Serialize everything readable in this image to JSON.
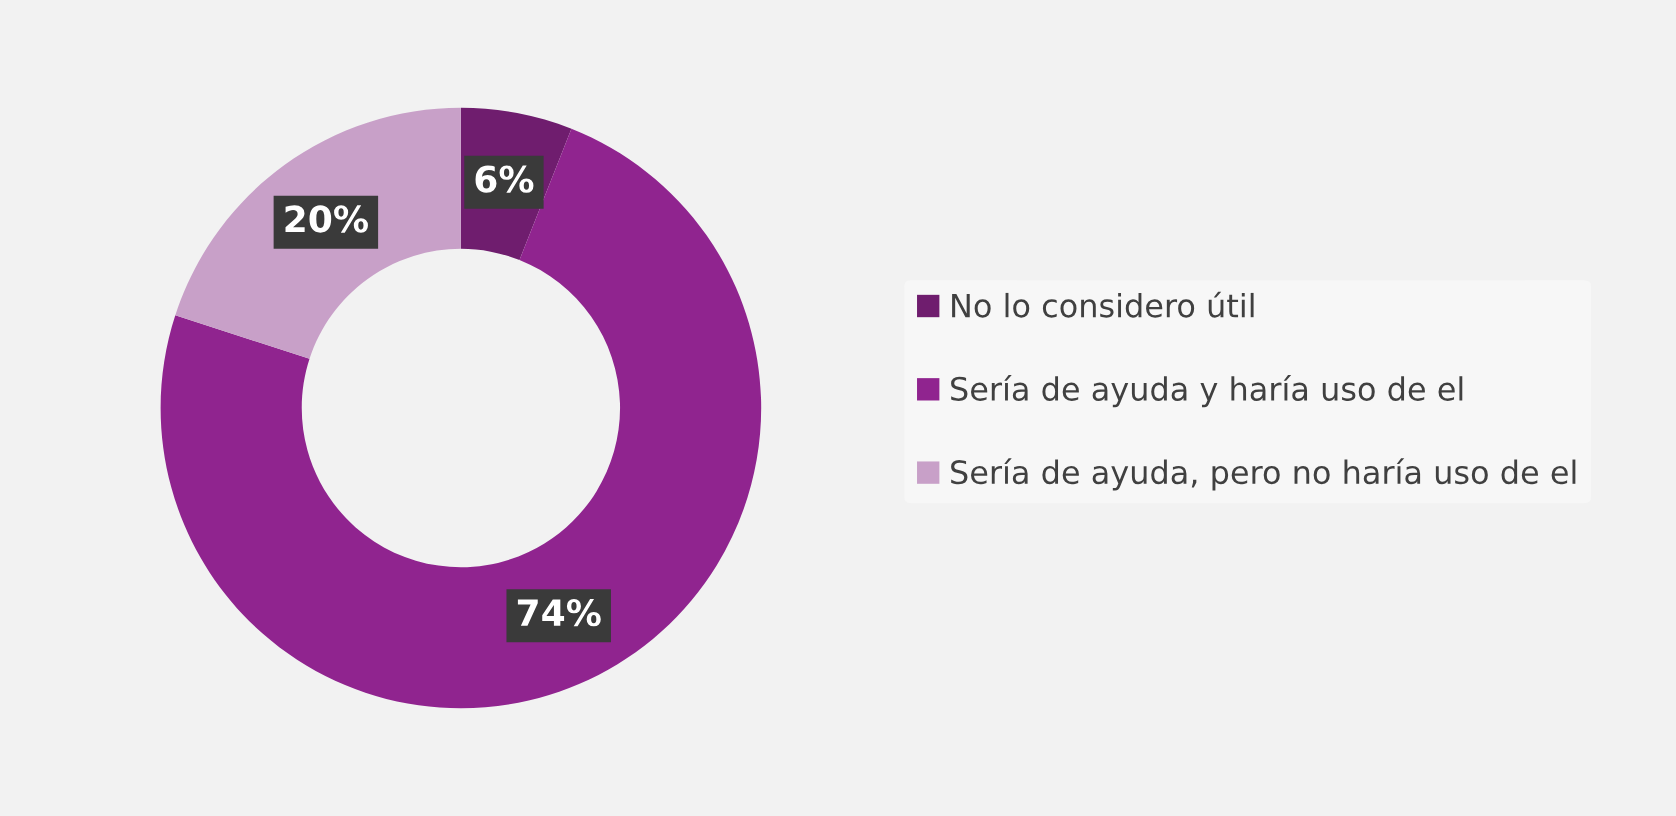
{
  "chart_data": {
    "type": "donut",
    "categories": [
      "No lo considero útil",
      "Sería de ayuda y haría uso de el",
      "Sería de ayuda, pero no haría uso de el"
    ],
    "values": [
      6,
      74,
      20
    ],
    "colors": [
      "#6f1d6e",
      "#90248f",
      "#c8a0c8"
    ],
    "value_labels": [
      "6%",
      "74%",
      "20%"
    ],
    "legend": "right"
  }
}
